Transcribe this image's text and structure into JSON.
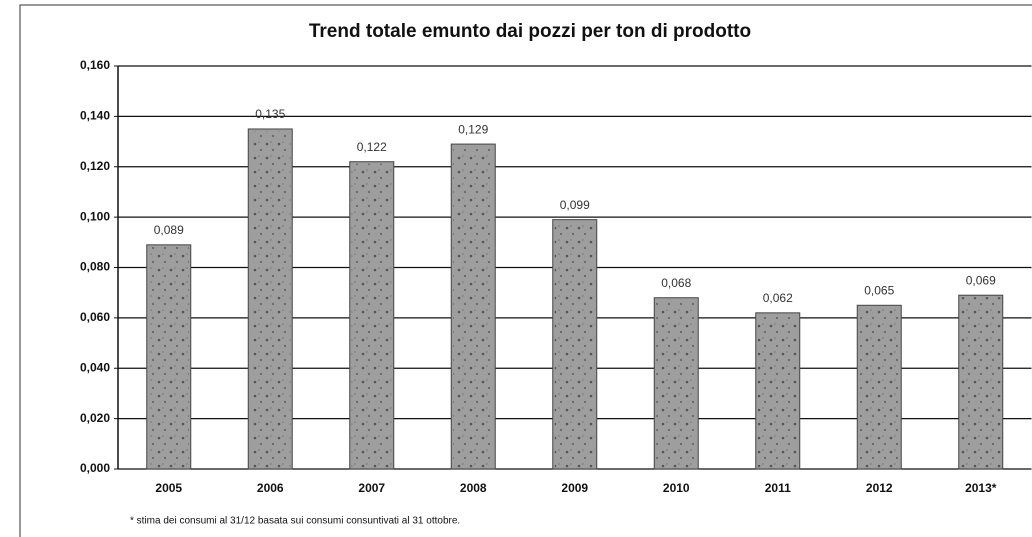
{
  "chart_data": {
    "type": "bar",
    "title": "Trend totale emunto dai pozzi per ton di prodotto",
    "categories": [
      "2005",
      "2006",
      "2007",
      "2008",
      "2009",
      "2010",
      "2011",
      "2012",
      "2013*"
    ],
    "values": [
      0.089,
      0.135,
      0.122,
      0.129,
      0.099,
      0.068,
      0.062,
      0.065,
      0.069
    ],
    "value_labels": [
      "0,089",
      "0,135",
      "0,122",
      "0,129",
      "0,099",
      "0,068",
      "0,062",
      "0,065",
      "0,069"
    ],
    "color": "#9e9e9e",
    "ylim": [
      0,
      0.16
    ],
    "yticks": [
      {
        "value": 0,
        "label": "0,000"
      },
      {
        "value": 0.02,
        "label": "0,020"
      },
      {
        "value": 0.04,
        "label": "0,040"
      },
      {
        "value": 0.06,
        "label": "0,060"
      },
      {
        "value": 0.08,
        "label": "0,080"
      },
      {
        "value": 0.1,
        "label": "0,100"
      },
      {
        "value": 0.12,
        "label": "0,120"
      },
      {
        "value": 0.14,
        "label": "0,140"
      },
      {
        "value": 0.16,
        "label": "0,160"
      }
    ],
    "grid": true,
    "footnote": "* stima dei consumi al 31/12 basata sui consumi consuntivati al 31 ottobre."
  }
}
